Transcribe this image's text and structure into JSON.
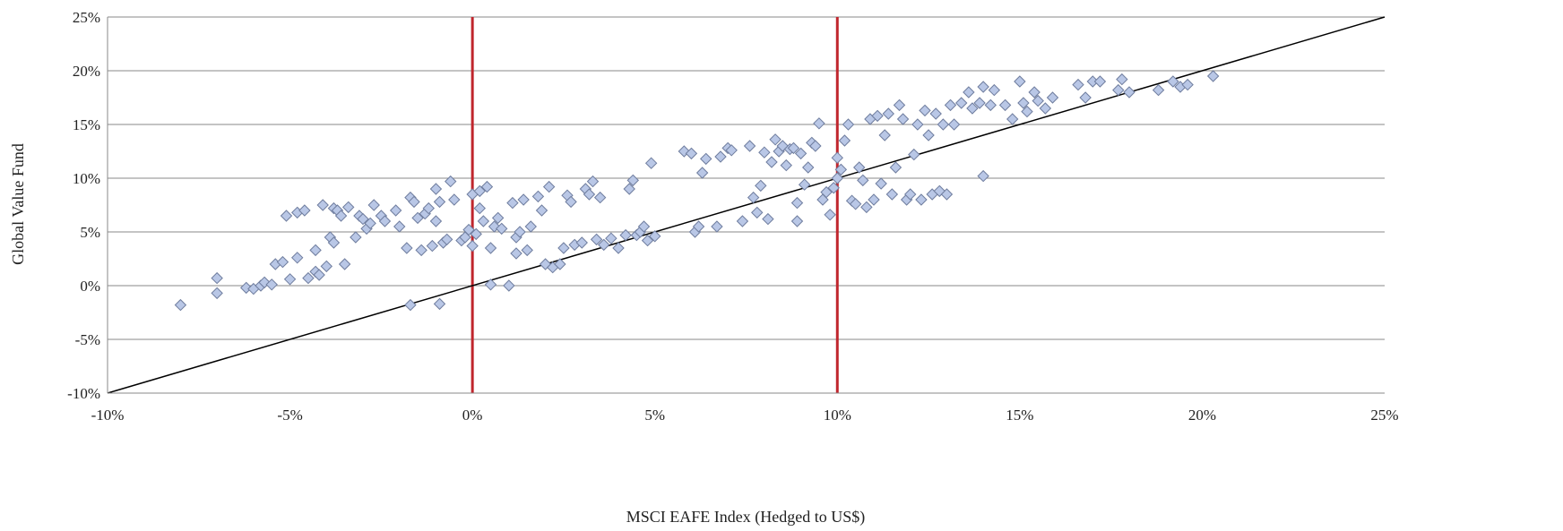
{
  "chart_data": {
    "type": "scatter",
    "xlabel": "MSCI EAFE Index (Hedged to US$)",
    "ylabel": "Global Value Fund",
    "xlim": [
      -0.1,
      0.25
    ],
    "ylim": [
      -0.1,
      0.25
    ],
    "xticks": [
      -0.1,
      -0.05,
      0.0,
      0.05,
      0.1,
      0.15,
      0.2,
      0.25
    ],
    "yticks": [
      -0.1,
      -0.05,
      0.0,
      0.05,
      0.1,
      0.15,
      0.2,
      0.25
    ],
    "xtick_labels": [
      "-10%",
      "-5%",
      "0%",
      "5%",
      "10%",
      "15%",
      "20%",
      "25%"
    ],
    "ytick_labels": [
      "-10%",
      "-5%",
      "0%",
      "5%",
      "10%",
      "15%",
      "20%",
      "25%"
    ],
    "grid": "horizontal",
    "reference_line": {
      "from": [
        -0.1,
        -0.1
      ],
      "to": [
        0.25,
        0.25
      ],
      "color": "#000000"
    },
    "vertical_markers": {
      "x": [
        0.0,
        0.1
      ],
      "color": "#c0262d"
    },
    "marker": {
      "shape": "diamond",
      "fill": "#b9c7e6",
      "stroke": "#6f7d9e"
    },
    "points": [
      [
        -0.08,
        -0.018
      ],
      [
        -0.07,
        0.007
      ],
      [
        -0.07,
        -0.007
      ],
      [
        -0.062,
        -0.002
      ],
      [
        -0.06,
        -0.003
      ],
      [
        -0.058,
        0.0
      ],
      [
        -0.057,
        0.003
      ],
      [
        -0.055,
        0.001
      ],
      [
        -0.054,
        0.02
      ],
      [
        -0.052,
        0.022
      ],
      [
        -0.051,
        0.065
      ],
      [
        -0.05,
        0.006
      ],
      [
        -0.048,
        0.026
      ],
      [
        -0.048,
        0.068
      ],
      [
        -0.046,
        0.07
      ],
      [
        -0.045,
        0.007
      ],
      [
        -0.043,
        0.013
      ],
      [
        -0.043,
        0.033
      ],
      [
        -0.042,
        0.01
      ],
      [
        -0.041,
        0.075
      ],
      [
        -0.04,
        0.018
      ],
      [
        -0.039,
        0.045
      ],
      [
        -0.038,
        0.04
      ],
      [
        -0.038,
        0.072
      ],
      [
        -0.037,
        0.07
      ],
      [
        -0.036,
        0.065
      ],
      [
        -0.035,
        0.02
      ],
      [
        -0.034,
        0.073
      ],
      [
        -0.032,
        0.045
      ],
      [
        -0.031,
        0.065
      ],
      [
        -0.03,
        0.062
      ],
      [
        -0.029,
        0.053
      ],
      [
        -0.028,
        0.058
      ],
      [
        -0.027,
        0.075
      ],
      [
        -0.025,
        0.065
      ],
      [
        -0.024,
        0.06
      ],
      [
        -0.021,
        0.07
      ],
      [
        -0.02,
        0.055
      ],
      [
        -0.018,
        0.035
      ],
      [
        -0.017,
        0.082
      ],
      [
        -0.016,
        0.078
      ],
      [
        -0.015,
        0.063
      ],
      [
        -0.014,
        0.033
      ],
      [
        -0.013,
        0.067
      ],
      [
        -0.012,
        0.072
      ],
      [
        -0.011,
        0.037
      ],
      [
        -0.01,
        0.09
      ],
      [
        -0.01,
        0.06
      ],
      [
        -0.009,
        0.078
      ],
      [
        -0.008,
        0.04
      ],
      [
        -0.007,
        0.043
      ],
      [
        -0.006,
        0.097
      ],
      [
        -0.005,
        0.08
      ],
      [
        -0.017,
        -0.018
      ],
      [
        -0.009,
        -0.017
      ],
      [
        -0.003,
        0.042
      ],
      [
        -0.002,
        0.045
      ],
      [
        -0.001,
        0.052
      ],
      [
        0.0,
        0.037
      ],
      [
        0.0,
        0.085
      ],
      [
        0.001,
        0.048
      ],
      [
        0.002,
        0.072
      ],
      [
        0.002,
        0.088
      ],
      [
        0.003,
        0.06
      ],
      [
        0.004,
        0.092
      ],
      [
        0.005,
        0.035
      ],
      [
        0.005,
        0.001
      ],
      [
        0.006,
        0.055
      ],
      [
        0.007,
        0.063
      ],
      [
        0.008,
        0.053
      ],
      [
        0.01,
        0.0
      ],
      [
        0.011,
        0.077
      ],
      [
        0.012,
        0.03
      ],
      [
        0.012,
        0.045
      ],
      [
        0.013,
        0.05
      ],
      [
        0.014,
        0.08
      ],
      [
        0.015,
        0.033
      ],
      [
        0.016,
        0.055
      ],
      [
        0.018,
        0.083
      ],
      [
        0.019,
        0.07
      ],
      [
        0.02,
        0.02
      ],
      [
        0.021,
        0.092
      ],
      [
        0.022,
        0.017
      ],
      [
        0.024,
        0.02
      ],
      [
        0.025,
        0.035
      ],
      [
        0.026,
        0.084
      ],
      [
        0.027,
        0.078
      ],
      [
        0.028,
        0.038
      ],
      [
        0.03,
        0.04
      ],
      [
        0.031,
        0.09
      ],
      [
        0.032,
        0.085
      ],
      [
        0.033,
        0.097
      ],
      [
        0.034,
        0.043
      ],
      [
        0.035,
        0.082
      ],
      [
        0.036,
        0.038
      ],
      [
        0.038,
        0.044
      ],
      [
        0.04,
        0.035
      ],
      [
        0.042,
        0.047
      ],
      [
        0.043,
        0.09
      ],
      [
        0.044,
        0.098
      ],
      [
        0.045,
        0.047
      ],
      [
        0.046,
        0.05
      ],
      [
        0.047,
        0.055
      ],
      [
        0.048,
        0.042
      ],
      [
        0.049,
        0.114
      ],
      [
        0.05,
        0.046
      ],
      [
        0.058,
        0.125
      ],
      [
        0.06,
        0.123
      ],
      [
        0.061,
        0.05
      ],
      [
        0.062,
        0.055
      ],
      [
        0.063,
        0.105
      ],
      [
        0.064,
        0.118
      ],
      [
        0.067,
        0.055
      ],
      [
        0.068,
        0.12
      ],
      [
        0.07,
        0.128
      ],
      [
        0.071,
        0.126
      ],
      [
        0.074,
        0.06
      ],
      [
        0.076,
        0.13
      ],
      [
        0.077,
        0.082
      ],
      [
        0.078,
        0.068
      ],
      [
        0.079,
        0.093
      ],
      [
        0.08,
        0.124
      ],
      [
        0.081,
        0.062
      ],
      [
        0.082,
        0.115
      ],
      [
        0.083,
        0.136
      ],
      [
        0.084,
        0.125
      ],
      [
        0.085,
        0.13
      ],
      [
        0.086,
        0.112
      ],
      [
        0.087,
        0.127
      ],
      [
        0.088,
        0.128
      ],
      [
        0.089,
        0.06
      ],
      [
        0.089,
        0.077
      ],
      [
        0.09,
        0.123
      ],
      [
        0.091,
        0.094
      ],
      [
        0.092,
        0.11
      ],
      [
        0.093,
        0.133
      ],
      [
        0.094,
        0.13
      ],
      [
        0.095,
        0.151
      ],
      [
        0.096,
        0.08
      ],
      [
        0.097,
        0.087
      ],
      [
        0.098,
        0.066
      ],
      [
        0.099,
        0.091
      ],
      [
        0.1,
        0.119
      ],
      [
        0.1,
        0.1
      ],
      [
        0.101,
        0.108
      ],
      [
        0.102,
        0.135
      ],
      [
        0.103,
        0.15
      ],
      [
        0.104,
        0.079
      ],
      [
        0.105,
        0.076
      ],
      [
        0.106,
        0.11
      ],
      [
        0.107,
        0.098
      ],
      [
        0.108,
        0.073
      ],
      [
        0.109,
        0.155
      ],
      [
        0.11,
        0.08
      ],
      [
        0.111,
        0.158
      ],
      [
        0.112,
        0.095
      ],
      [
        0.113,
        0.14
      ],
      [
        0.114,
        0.16
      ],
      [
        0.115,
        0.085
      ],
      [
        0.116,
        0.11
      ],
      [
        0.117,
        0.168
      ],
      [
        0.118,
        0.155
      ],
      [
        0.119,
        0.08
      ],
      [
        0.12,
        0.085
      ],
      [
        0.121,
        0.122
      ],
      [
        0.122,
        0.15
      ],
      [
        0.123,
        0.08
      ],
      [
        0.124,
        0.163
      ],
      [
        0.125,
        0.14
      ],
      [
        0.126,
        0.085
      ],
      [
        0.127,
        0.16
      ],
      [
        0.128,
        0.088
      ],
      [
        0.129,
        0.15
      ],
      [
        0.13,
        0.085
      ],
      [
        0.131,
        0.168
      ],
      [
        0.132,
        0.15
      ],
      [
        0.134,
        0.17
      ],
      [
        0.136,
        0.18
      ],
      [
        0.137,
        0.165
      ],
      [
        0.139,
        0.17
      ],
      [
        0.14,
        0.102
      ],
      [
        0.14,
        0.185
      ],
      [
        0.142,
        0.168
      ],
      [
        0.143,
        0.182
      ],
      [
        0.146,
        0.168
      ],
      [
        0.148,
        0.155
      ],
      [
        0.15,
        0.19
      ],
      [
        0.151,
        0.17
      ],
      [
        0.152,
        0.162
      ],
      [
        0.154,
        0.18
      ],
      [
        0.155,
        0.172
      ],
      [
        0.157,
        0.165
      ],
      [
        0.159,
        0.175
      ],
      [
        0.166,
        0.187
      ],
      [
        0.168,
        0.175
      ],
      [
        0.17,
        0.19
      ],
      [
        0.172,
        0.19
      ],
      [
        0.177,
        0.182
      ],
      [
        0.178,
        0.192
      ],
      [
        0.18,
        0.18
      ],
      [
        0.188,
        0.182
      ],
      [
        0.192,
        0.19
      ],
      [
        0.194,
        0.185
      ],
      [
        0.196,
        0.187
      ],
      [
        0.203,
        0.195
      ]
    ]
  }
}
